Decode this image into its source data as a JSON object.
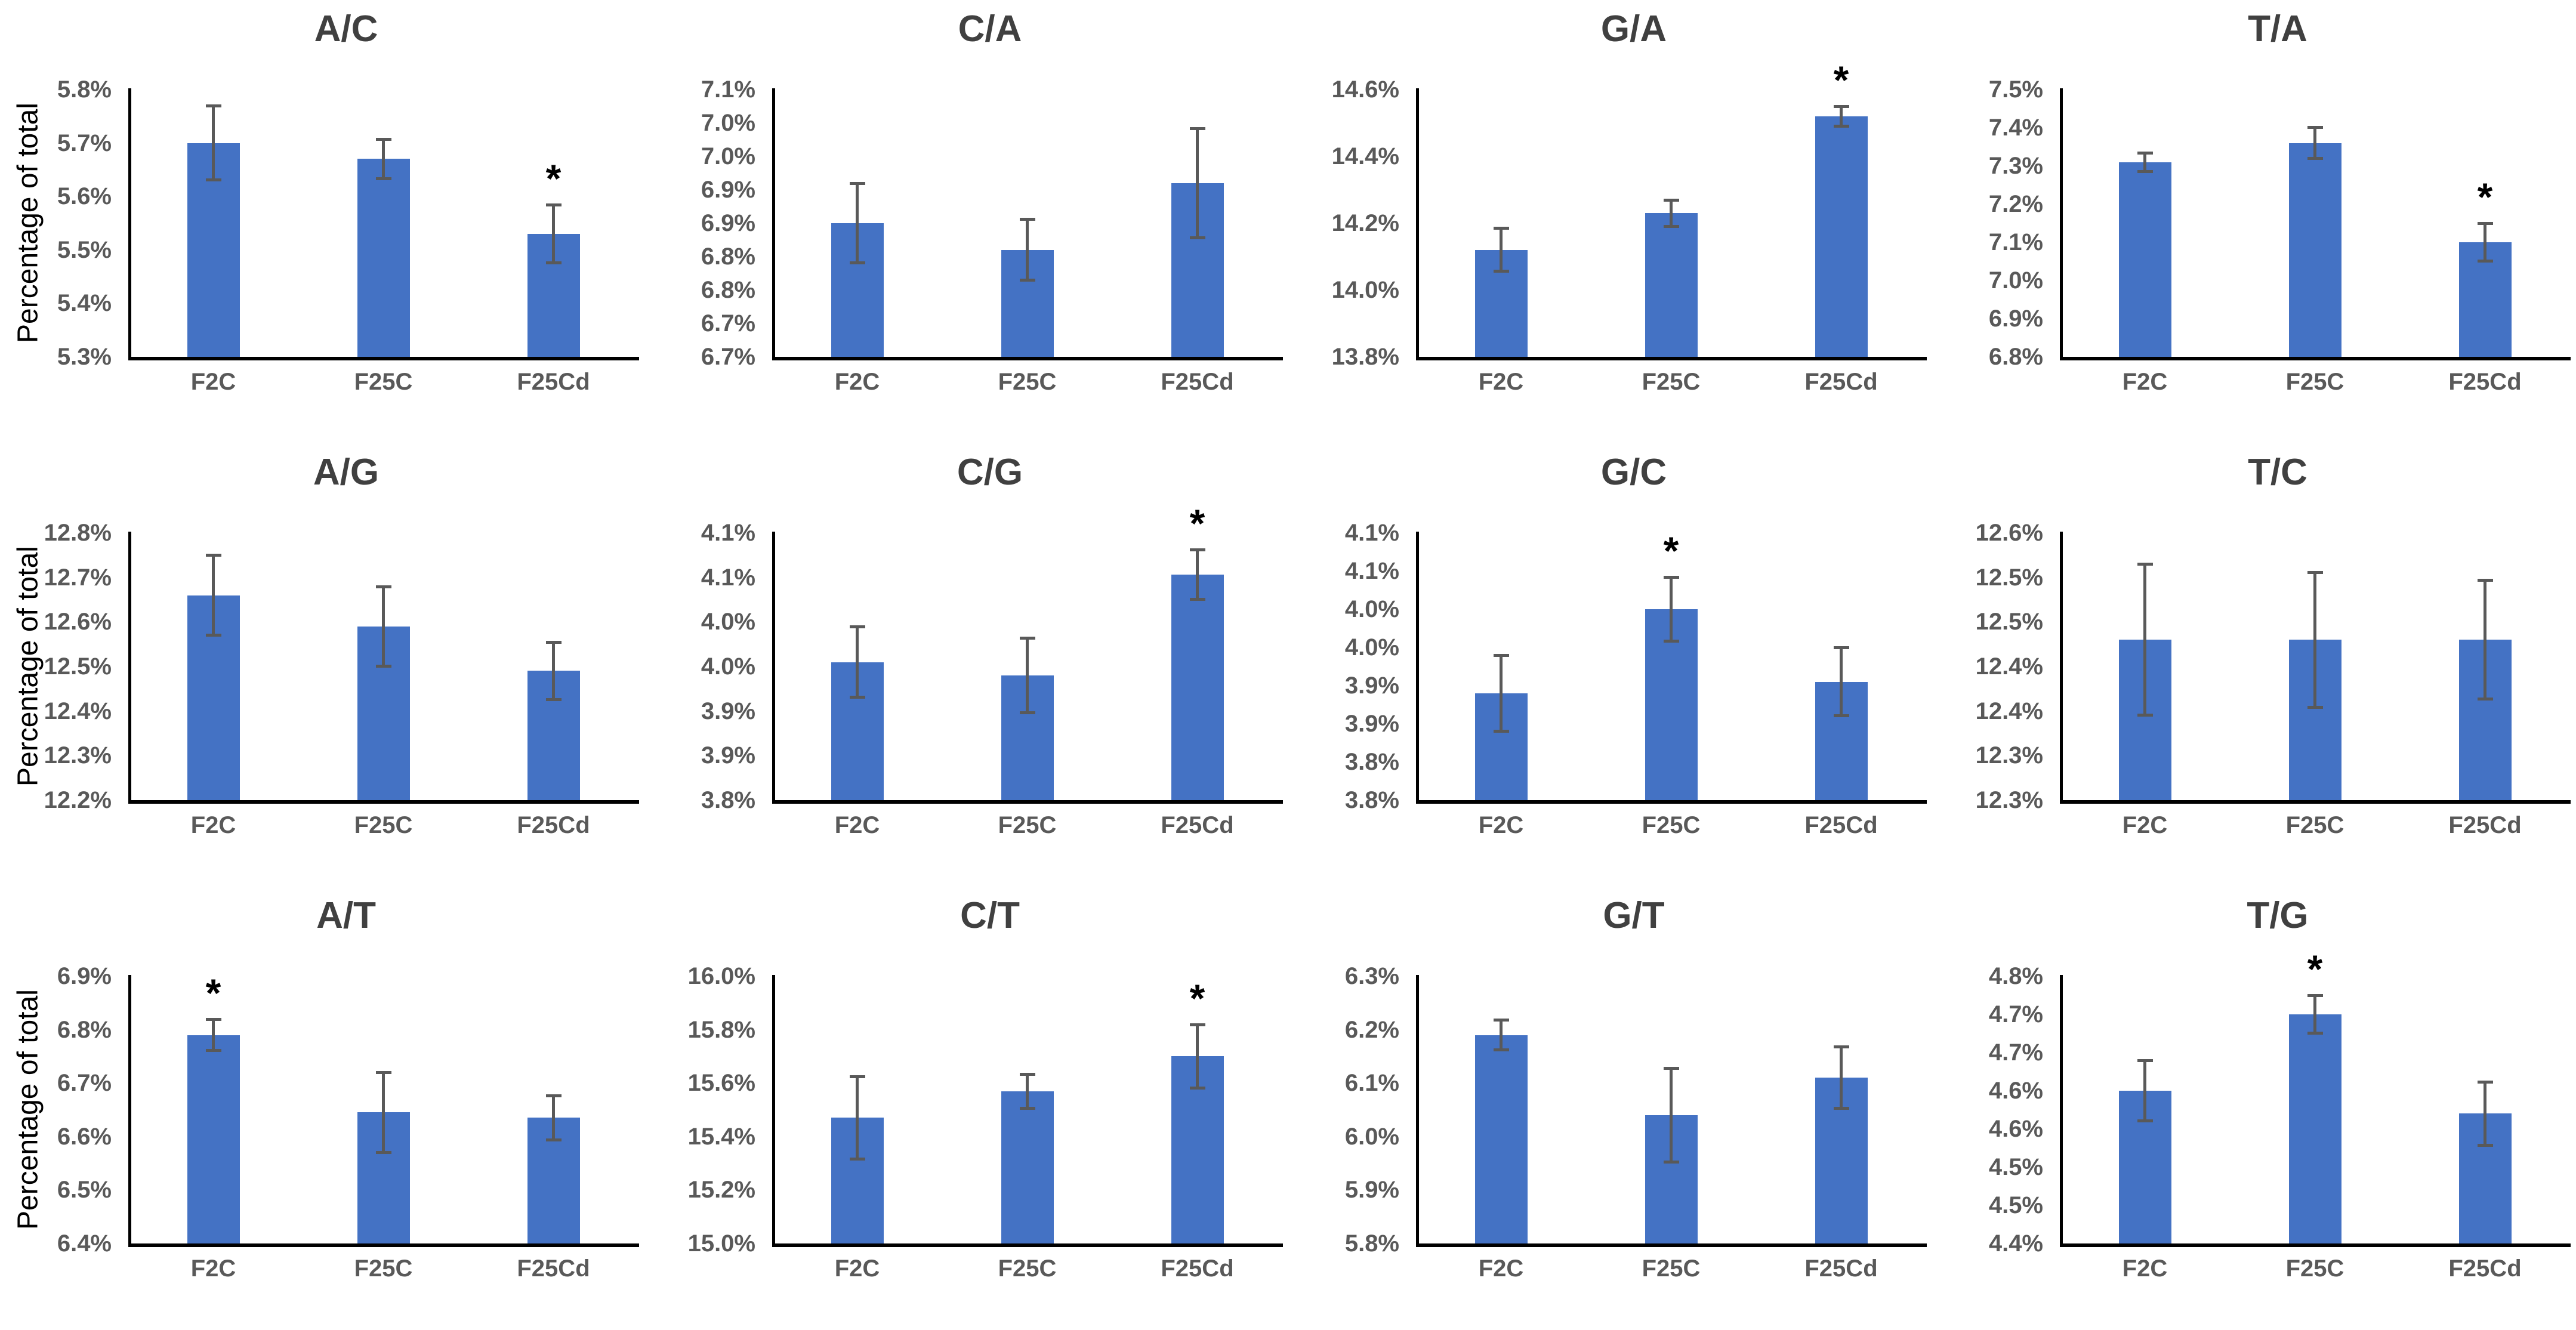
{
  "figure": {
    "ylabel": "Percentage of total",
    "categories": [
      "F2C",
      "F25C",
      "F25Cd"
    ],
    "significance_marker": "*",
    "colors": {
      "bar": "#4472C4",
      "error_bar": "#595959",
      "axis": "#000000",
      "title_text": "#404040",
      "tick_text": "#595959",
      "category_text": "#595959",
      "ylabel_text": "#000000",
      "asterisk": "#000000",
      "background": "#FFFFFF"
    }
  },
  "chart_data": [
    {
      "type": "bar",
      "title": "A/C",
      "show_ylabel": true,
      "ylabel": "Percentage of total",
      "categories": [
        "F2C",
        "F25C",
        "F25Cd"
      ],
      "values": [
        5.7,
        5.67,
        5.53
      ],
      "errors": [
        0.07,
        0.037,
        0.055
      ],
      "sig": [
        false,
        false,
        true
      ],
      "ymin": 5.3,
      "ymax": 5.8,
      "grid": false,
      "yticks": [
        {
          "v": 5.8,
          "label": "5.8%"
        },
        {
          "v": 5.7,
          "label": "5.7%"
        },
        {
          "v": 5.6,
          "label": "5.6%"
        },
        {
          "v": 5.5,
          "label": "5.5%"
        },
        {
          "v": 5.4,
          "label": "5.4%"
        },
        {
          "v": 5.3,
          "label": "5.3%"
        }
      ]
    },
    {
      "type": "bar",
      "title": "C/A",
      "show_ylabel": false,
      "categories": [
        "F2C",
        "F25C",
        "F25Cd"
      ],
      "values": [
        6.9,
        6.86,
        6.96
      ],
      "errors": [
        0.06,
        0.046,
        0.082
      ],
      "sig": [
        false,
        false,
        false
      ],
      "ymin": 6.7,
      "ymax": 7.1,
      "grid": false,
      "yticks": [
        {
          "v": 7.1,
          "label": "7.1%"
        },
        {
          "v": 7.05,
          "label": "7.0%"
        },
        {
          "v": 7.0,
          "label": "7.0%"
        },
        {
          "v": 6.95,
          "label": "6.9%"
        },
        {
          "v": 6.9,
          "label": "6.9%"
        },
        {
          "v": 6.85,
          "label": "6.8%"
        },
        {
          "v": 6.8,
          "label": "6.8%"
        },
        {
          "v": 6.75,
          "label": "6.7%"
        },
        {
          "v": 6.7,
          "label": "6.7%"
        }
      ]
    },
    {
      "type": "bar",
      "title": "G/A",
      "show_ylabel": false,
      "categories": [
        "F2C",
        "F25C",
        "F25Cd"
      ],
      "values": [
        14.12,
        14.23,
        14.52
      ],
      "errors": [
        0.065,
        0.04,
        0.03
      ],
      "sig": [
        false,
        false,
        true
      ],
      "ymin": 13.8,
      "ymax": 14.6,
      "grid": false,
      "yticks": [
        {
          "v": 14.6,
          "label": "14.6%"
        },
        {
          "v": 14.4,
          "label": "14.4%"
        },
        {
          "v": 14.2,
          "label": "14.2%"
        },
        {
          "v": 14.0,
          "label": "14.0%"
        },
        {
          "v": 13.8,
          "label": "13.8%"
        }
      ]
    },
    {
      "type": "bar",
      "title": "T/A",
      "show_ylabel": false,
      "categories": [
        "F2C",
        "F25C",
        "F25Cd"
      ],
      "values": [
        7.31,
        7.36,
        7.1
      ],
      "errors": [
        0.025,
        0.042,
        0.05
      ],
      "sig": [
        false,
        false,
        true
      ],
      "ymin": 6.8,
      "ymax": 7.5,
      "grid": false,
      "yticks": [
        {
          "v": 7.5,
          "label": "7.5%"
        },
        {
          "v": 7.4,
          "label": "7.4%"
        },
        {
          "v": 7.3,
          "label": "7.3%"
        },
        {
          "v": 7.2,
          "label": "7.2%"
        },
        {
          "v": 7.1,
          "label": "7.1%"
        },
        {
          "v": 7.0,
          "label": "7.0%"
        },
        {
          "v": 6.9,
          "label": "6.9%"
        },
        {
          "v": 6.8,
          "label": "6.8%"
        }
      ]
    },
    {
      "type": "bar",
      "title": "A/G",
      "show_ylabel": true,
      "ylabel": "Percentage of total",
      "categories": [
        "F2C",
        "F25C",
        "F25Cd"
      ],
      "values": [
        12.66,
        12.59,
        12.49
      ],
      "errors": [
        0.09,
        0.09,
        0.065
      ],
      "sig": [
        false,
        false,
        false
      ],
      "ymin": 12.2,
      "ymax": 12.8,
      "grid": false,
      "yticks": [
        {
          "v": 12.8,
          "label": "12.8%"
        },
        {
          "v": 12.7,
          "label": "12.7%"
        },
        {
          "v": 12.6,
          "label": "12.6%"
        },
        {
          "v": 12.5,
          "label": "12.5%"
        },
        {
          "v": 12.4,
          "label": "12.4%"
        },
        {
          "v": 12.3,
          "label": "12.3%"
        },
        {
          "v": 12.2,
          "label": "12.2%"
        }
      ]
    },
    {
      "type": "bar",
      "title": "C/G",
      "show_ylabel": false,
      "categories": [
        "F2C",
        "F25C",
        "F25Cd"
      ],
      "values": [
        3.955,
        3.94,
        4.053
      ],
      "errors": [
        0.04,
        0.042,
        0.028
      ],
      "sig": [
        false,
        false,
        true
      ],
      "ymin": 3.8,
      "ymax": 4.1,
      "grid": false,
      "yticks": [
        {
          "v": 4.1,
          "label": "4.1%"
        },
        {
          "v": 4.05,
          "label": "4.1%"
        },
        {
          "v": 4.0,
          "label": "4.0%"
        },
        {
          "v": 3.95,
          "label": "4.0%"
        },
        {
          "v": 3.9,
          "label": "3.9%"
        },
        {
          "v": 3.85,
          "label": "3.9%"
        },
        {
          "v": 3.8,
          "label": "3.8%"
        }
      ]
    },
    {
      "type": "bar",
      "title": "G/C",
      "show_ylabel": false,
      "categories": [
        "F2C",
        "F25C",
        "F25Cd"
      ],
      "values": [
        3.89,
        4.0,
        3.905
      ],
      "errors": [
        0.05,
        0.042,
        0.045
      ],
      "sig": [
        false,
        true,
        false
      ],
      "ymin": 3.75,
      "ymax": 4.1,
      "grid": false,
      "yticks": [
        {
          "v": 4.1,
          "label": "4.1%"
        },
        {
          "v": 4.05,
          "label": "4.1%"
        },
        {
          "v": 4.0,
          "label": "4.0%"
        },
        {
          "v": 3.95,
          "label": "4.0%"
        },
        {
          "v": 3.9,
          "label": "3.9%"
        },
        {
          "v": 3.85,
          "label": "3.9%"
        },
        {
          "v": 3.8,
          "label": "3.8%"
        },
        {
          "v": 3.75,
          "label": "3.8%"
        }
      ]
    },
    {
      "type": "bar",
      "title": "T/C",
      "show_ylabel": false,
      "categories": [
        "F2C",
        "F25C",
        "F25Cd"
      ],
      "values": [
        12.48,
        12.48,
        12.48
      ],
      "errors": [
        0.085,
        0.076,
        0.067
      ],
      "sig": [
        false,
        false,
        false
      ],
      "ymin": 12.3,
      "ymax": 12.6,
      "grid": false,
      "yticks": [
        {
          "v": 12.6,
          "label": "12.6%"
        },
        {
          "v": 12.55,
          "label": "12.5%"
        },
        {
          "v": 12.5,
          "label": "12.5%"
        },
        {
          "v": 12.45,
          "label": "12.4%"
        },
        {
          "v": 12.4,
          "label": "12.4%"
        },
        {
          "v": 12.35,
          "label": "12.3%"
        },
        {
          "v": 12.3,
          "label": "12.3%"
        }
      ]
    },
    {
      "type": "bar",
      "title": "A/T",
      "show_ylabel": true,
      "ylabel": "Percentage of total",
      "categories": [
        "F2C",
        "F25C",
        "F25Cd"
      ],
      "values": [
        6.79,
        6.645,
        6.635
      ],
      "errors": [
        0.03,
        0.075,
        0.042
      ],
      "sig": [
        true,
        false,
        false
      ],
      "ymin": 6.4,
      "ymax": 6.9,
      "grid": false,
      "yticks": [
        {
          "v": 6.9,
          "label": "6.9%"
        },
        {
          "v": 6.8,
          "label": "6.8%"
        },
        {
          "v": 6.7,
          "label": "6.7%"
        },
        {
          "v": 6.6,
          "label": "6.6%"
        },
        {
          "v": 6.5,
          "label": "6.5%"
        },
        {
          "v": 6.4,
          "label": "6.4%"
        }
      ]
    },
    {
      "type": "bar",
      "title": "C/T",
      "show_ylabel": false,
      "categories": [
        "F2C",
        "F25C",
        "F25Cd"
      ],
      "values": [
        15.47,
        15.57,
        15.7
      ],
      "errors": [
        0.155,
        0.065,
        0.12
      ],
      "sig": [
        false,
        false,
        true
      ],
      "ymin": 15.0,
      "ymax": 16.0,
      "grid": false,
      "yticks": [
        {
          "v": 16.0,
          "label": "16.0%"
        },
        {
          "v": 15.8,
          "label": "15.8%"
        },
        {
          "v": 15.6,
          "label": "15.6%"
        },
        {
          "v": 15.4,
          "label": "15.4%"
        },
        {
          "v": 15.2,
          "label": "15.2%"
        },
        {
          "v": 15.0,
          "label": "15.0%"
        }
      ]
    },
    {
      "type": "bar",
      "title": "G/T",
      "show_ylabel": false,
      "categories": [
        "F2C",
        "F25C",
        "F25Cd"
      ],
      "values": [
        6.19,
        6.04,
        6.11
      ],
      "errors": [
        0.028,
        0.088,
        0.058
      ],
      "sig": [
        false,
        false,
        false
      ],
      "ymin": 5.8,
      "ymax": 6.3,
      "grid": false,
      "yticks": [
        {
          "v": 6.3,
          "label": "6.3%"
        },
        {
          "v": 6.2,
          "label": "6.2%"
        },
        {
          "v": 6.1,
          "label": "6.1%"
        },
        {
          "v": 6.0,
          "label": "6.0%"
        },
        {
          "v": 5.9,
          "label": "5.9%"
        },
        {
          "v": 5.8,
          "label": "5.8%"
        }
      ]
    },
    {
      "type": "bar",
      "title": "T/G",
      "show_ylabel": false,
      "categories": [
        "F2C",
        "F25C",
        "F25Cd"
      ],
      "values": [
        4.6,
        4.7,
        4.57
      ],
      "errors": [
        0.04,
        0.025,
        0.042
      ],
      "sig": [
        false,
        true,
        false
      ],
      "ymin": 4.4,
      "ymax": 4.75,
      "grid": false,
      "yticks": [
        {
          "v": 4.75,
          "label": "4.8%"
        },
        {
          "v": 4.7,
          "label": "4.7%"
        },
        {
          "v": 4.65,
          "label": "4.7%"
        },
        {
          "v": 4.6,
          "label": "4.6%"
        },
        {
          "v": 4.55,
          "label": "4.6%"
        },
        {
          "v": 4.5,
          "label": "4.5%"
        },
        {
          "v": 4.45,
          "label": "4.5%"
        },
        {
          "v": 4.4,
          "label": "4.4%"
        }
      ]
    }
  ]
}
